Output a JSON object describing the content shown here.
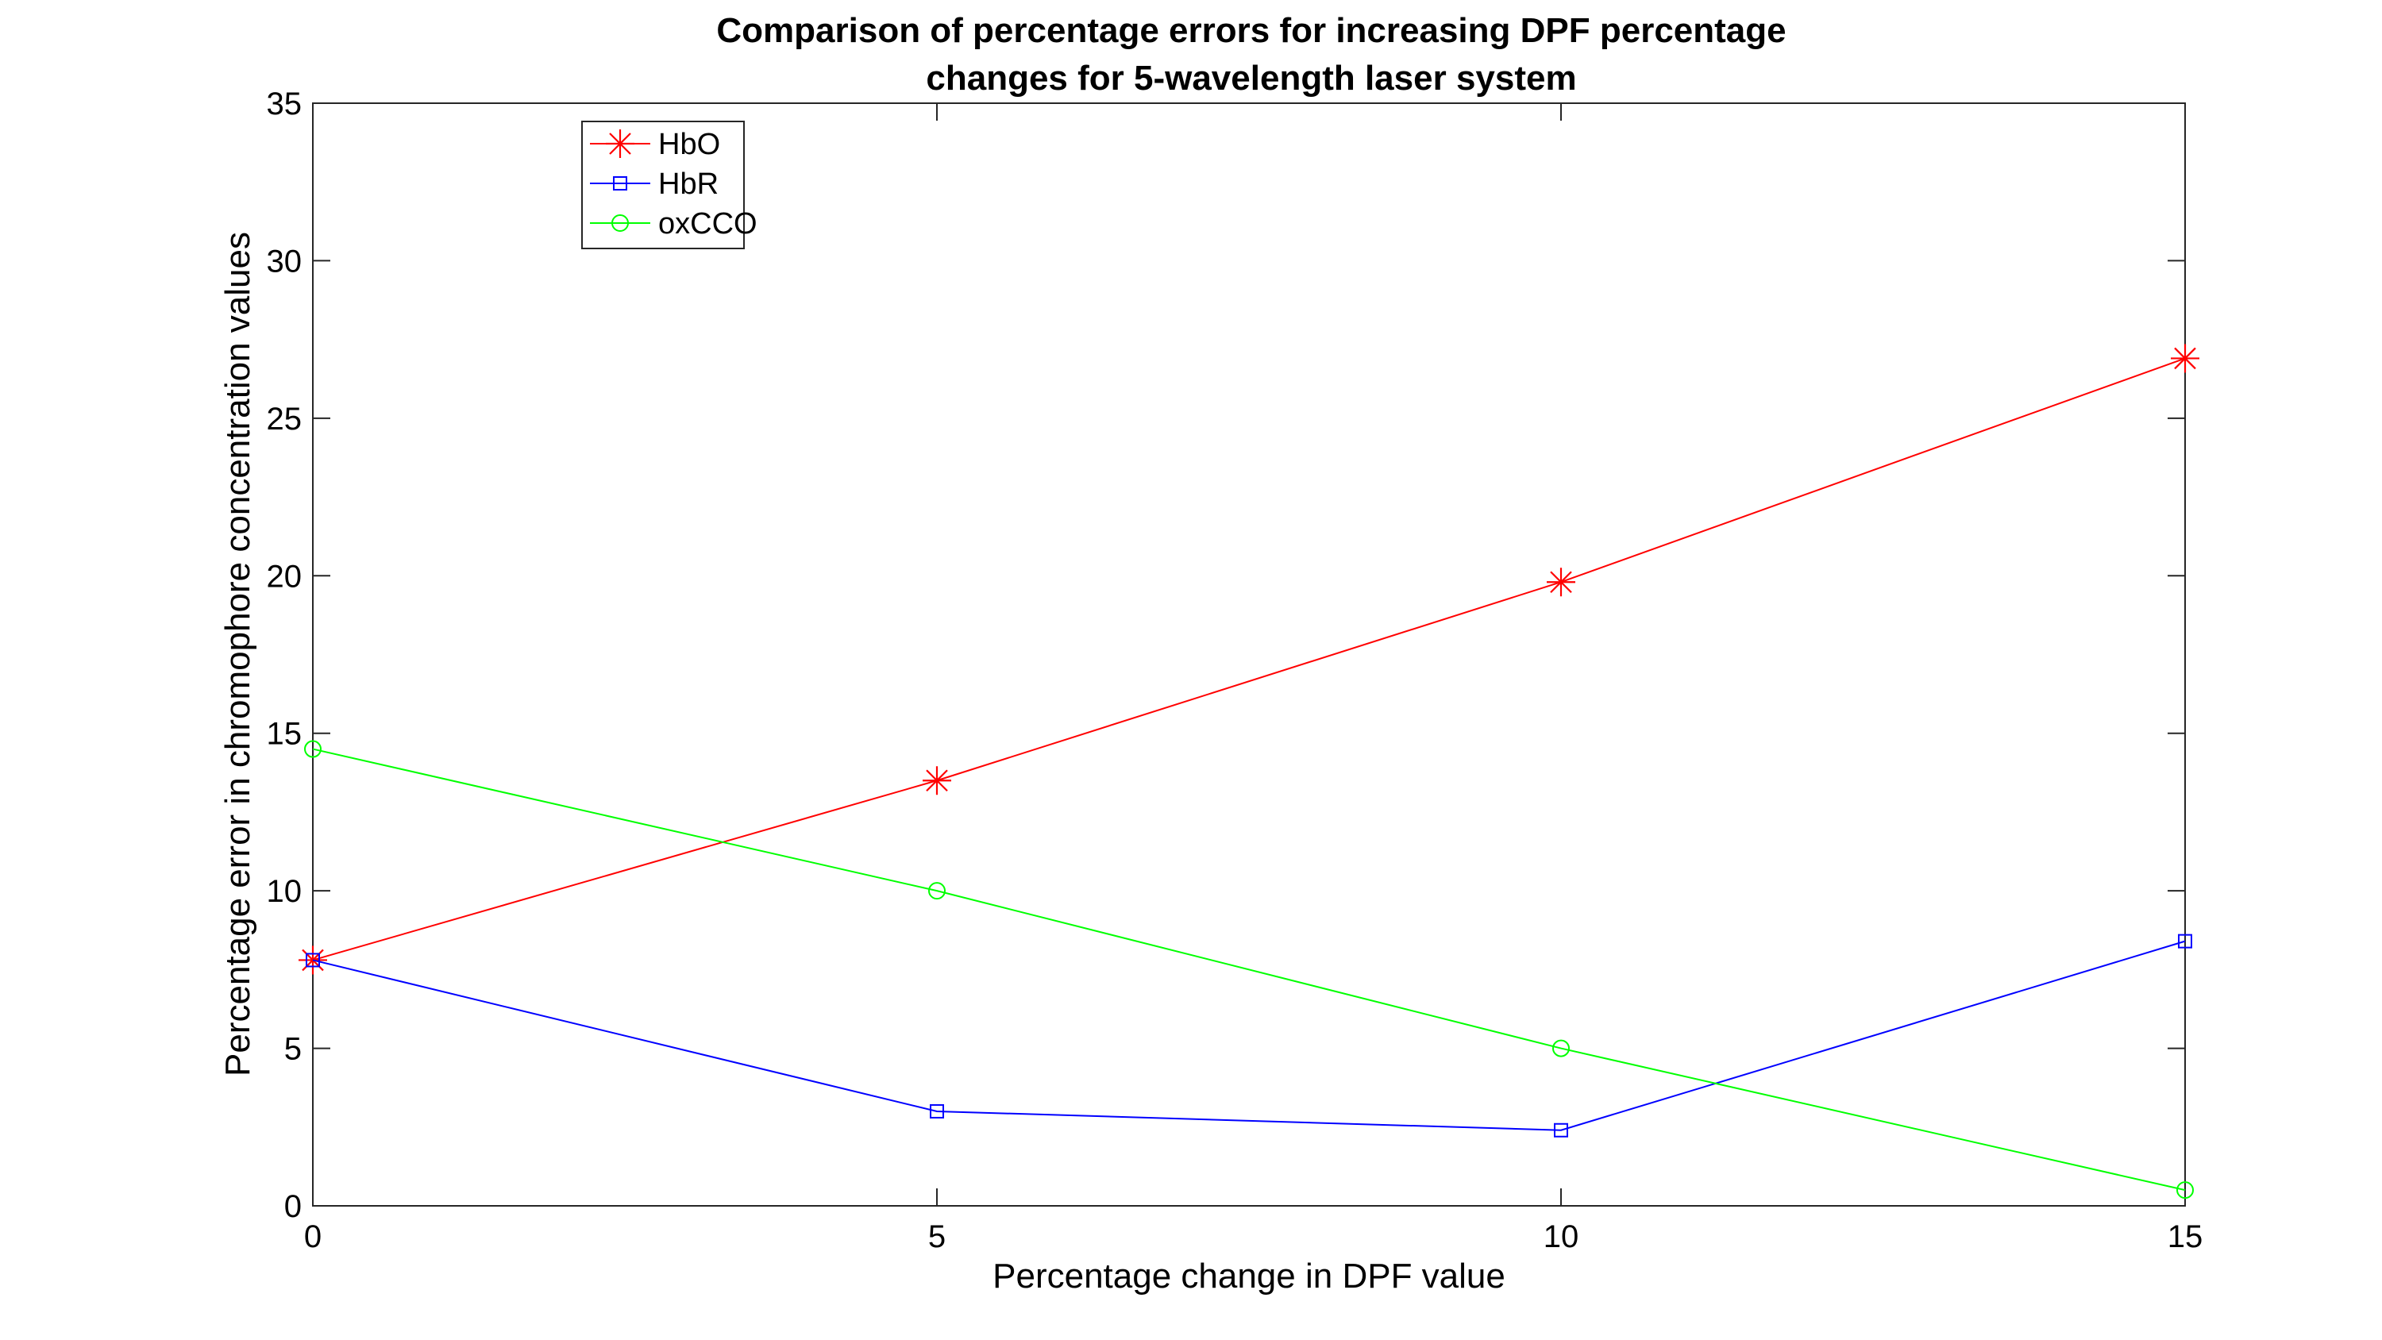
{
  "chart_data": {
    "type": "line",
    "title": [
      "Comparison of percentage errors for increasing DPF percentage",
      "changes for 5-wavelength laser system"
    ],
    "xlabel": "Percentage change in DPF value",
    "ylabel": "Percentage error in chromophore concentration values",
    "xlim": [
      0,
      15
    ],
    "ylim": [
      0,
      35
    ],
    "xticks": [
      0,
      5,
      10,
      15
    ],
    "yticks": [
      0,
      5,
      10,
      15,
      20,
      25,
      30,
      35
    ],
    "x": [
      0,
      5,
      10,
      15
    ],
    "grid": false,
    "legend_position": "top-left",
    "series": [
      {
        "name": "HbO",
        "values": [
          7.8,
          13.5,
          19.8,
          26.9
        ],
        "color": "#ff0000",
        "marker": "asterisk"
      },
      {
        "name": "HbR",
        "values": [
          7.8,
          3.0,
          2.4,
          8.4
        ],
        "color": "#0000ff",
        "marker": "square"
      },
      {
        "name": "oxCCO",
        "values": [
          14.5,
          10.0,
          5.0,
          0.5
        ],
        "color": "#00ff00",
        "marker": "circle"
      }
    ]
  }
}
